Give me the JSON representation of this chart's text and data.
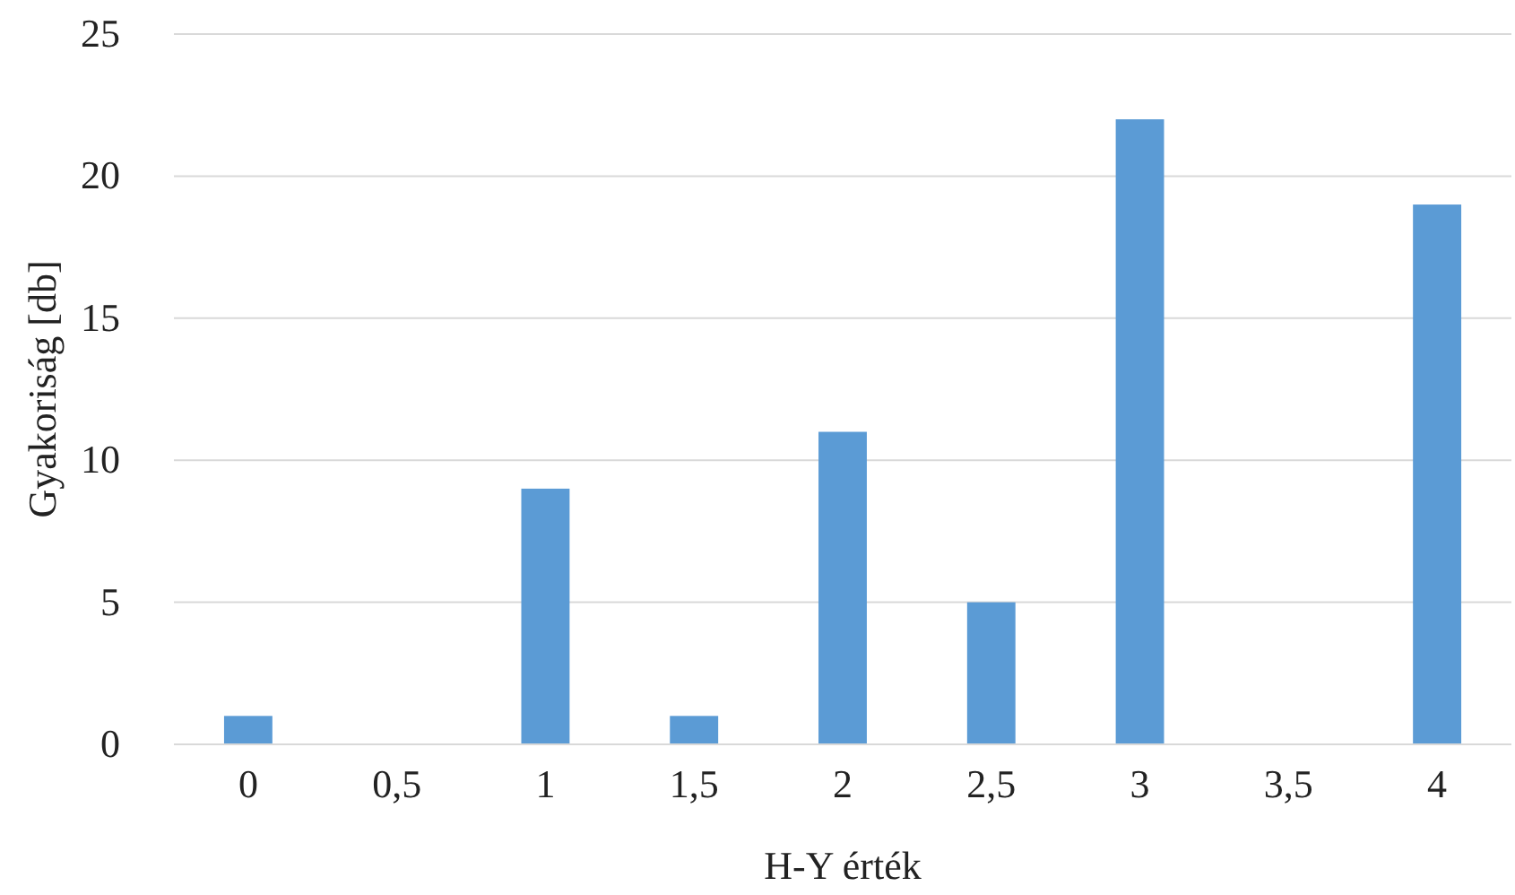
{
  "chart_data": {
    "type": "bar",
    "xlabel": "H-Y érték",
    "ylabel": "Gyakoriság [db]",
    "categories": [
      "0",
      "0,5",
      "1",
      "1,5",
      "2",
      "2,5",
      "3",
      "3,5",
      "4"
    ],
    "values": [
      1,
      0,
      9,
      1,
      11,
      5,
      22,
      0,
      19
    ],
    "color": "#5b9bd5",
    "ylim": [
      0,
      25
    ],
    "yticks": [
      0,
      5,
      10,
      15,
      20,
      25
    ],
    "grid": "y"
  }
}
